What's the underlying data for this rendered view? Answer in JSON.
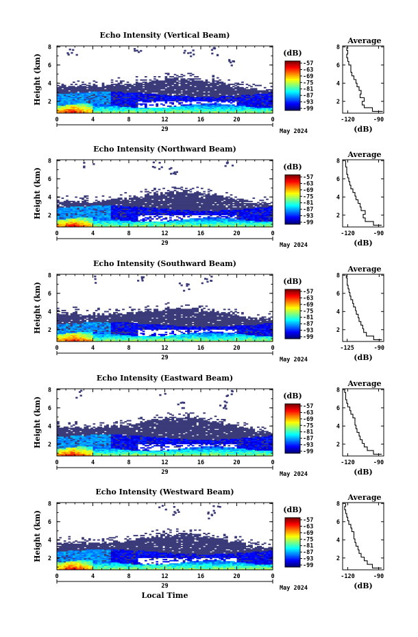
{
  "chart_data": [
    {
      "type": "heatmap",
      "title": "Echo Intensity (Vertical Beam)",
      "ylabel": "Height (km)",
      "y_ticks": [
        "2",
        "4",
        "6",
        "8"
      ],
      "x_ticks": [
        "0",
        "4",
        "8",
        "12",
        "16",
        "20",
        "0"
      ],
      "date_day": "29",
      "date_label": "May 2024",
      "xlim": [
        0,
        24
      ],
      "ylim": [
        0.7,
        8.1
      ],
      "colorbar": {
        "unit": "(dB)",
        "ticks": [
          "-57",
          "-63",
          "-69",
          "-75",
          "-81",
          "-87",
          "-93",
          "-99"
        ]
      },
      "layers": {
        "surface_top": 1.5,
        "middle_top": 3.0,
        "cloud_top_early": 3.8,
        "cloud_top_peak": 4.5,
        "cloud_top_late": 3.0,
        "sparse_noise": [
          [
            1.5,
            7.6
          ],
          [
            9.0,
            7.9
          ],
          [
            14.5,
            7.4
          ],
          [
            17.5,
            7.6
          ],
          [
            19.5,
            6.3
          ]
        ]
      },
      "average": {
        "title": "Average",
        "xlabel": "(dB)",
        "x_ticks": [
          "-120",
          "-90"
        ],
        "y_ticks": [
          "2",
          "4",
          "6",
          "8"
        ],
        "xlim": [
          -125,
          -85
        ],
        "ylim": [
          0.7,
          8.1
        ],
        "profile": [
          [
            -86,
            0.9
          ],
          [
            -96,
            1.3
          ],
          [
            -104,
            1.6
          ],
          [
            -106,
            2.0
          ],
          [
            -104,
            2.4
          ],
          [
            -108,
            2.8
          ],
          [
            -107,
            3.2
          ],
          [
            -109,
            3.6
          ],
          [
            -111,
            4.0
          ],
          [
            -112,
            4.4
          ],
          [
            -114,
            4.8
          ],
          [
            -116,
            5.2
          ],
          [
            -117,
            5.6
          ],
          [
            -117,
            6.0
          ],
          [
            -119,
            6.4
          ],
          [
            -120,
            6.8
          ],
          [
            -121,
            7.2
          ],
          [
            -120,
            7.6
          ],
          [
            -121,
            8.0
          ]
        ]
      }
    },
    {
      "type": "heatmap",
      "title": "Echo Intensity (Northward Beam)",
      "ylabel": "Height (km)",
      "y_ticks": [
        "2",
        "4",
        "6",
        "8"
      ],
      "x_ticks": [
        "0",
        "4",
        "8",
        "12",
        "16",
        "20",
        "0"
      ],
      "date_day": "29",
      "date_label": "May 2024",
      "xlim": [
        0,
        24
      ],
      "ylim": [
        0.7,
        8.1
      ],
      "colorbar": {
        "unit": "(dB)",
        "ticks": [
          "-57",
          "-63",
          "-69",
          "-75",
          "-81",
          "-87",
          "-93",
          "-99"
        ]
      },
      "layers": {
        "surface_top": 1.5,
        "middle_top": 3.0,
        "cloud_top_early": 3.5,
        "cloud_top_peak": 4.6,
        "cloud_top_late": 3.1,
        "sparse_noise": [
          [
            3.5,
            7.8
          ],
          [
            11.0,
            7.6
          ],
          [
            13.0,
            7.0
          ],
          [
            19.0,
            7.9
          ]
        ]
      },
      "average": {
        "title": "Average",
        "xlabel": "(dB)",
        "x_ticks": [
          "-120",
          "-90"
        ],
        "y_ticks": [
          "2",
          "4",
          "6",
          "8"
        ],
        "xlim": [
          -125,
          -85
        ],
        "ylim": [
          0.7,
          8.1
        ],
        "profile": [
          [
            -87,
            0.9
          ],
          [
            -95,
            1.3
          ],
          [
            -103,
            1.7
          ],
          [
            -105,
            2.1
          ],
          [
            -103,
            2.5
          ],
          [
            -107,
            2.9
          ],
          [
            -108,
            3.3
          ],
          [
            -110,
            3.7
          ],
          [
            -112,
            4.1
          ],
          [
            -113,
            4.5
          ],
          [
            -115,
            4.9
          ],
          [
            -117,
            5.3
          ],
          [
            -118,
            5.7
          ],
          [
            -119,
            6.1
          ],
          [
            -120,
            6.5
          ],
          [
            -121,
            6.9
          ],
          [
            -121,
            7.3
          ],
          [
            -122,
            7.7
          ],
          [
            -122,
            8.0
          ]
        ]
      }
    },
    {
      "type": "heatmap",
      "title": "Echo Intensity (Southward Beam)",
      "ylabel": "Height (km)",
      "y_ticks": [
        "2",
        "4",
        "6",
        "8"
      ],
      "x_ticks": [
        "0",
        "4",
        "8",
        "12",
        "16",
        "20",
        "0"
      ],
      "date_day": "29",
      "date_label": "May 2024",
      "xlim": [
        0,
        24
      ],
      "ylim": [
        0.7,
        8.1
      ],
      "colorbar": {
        "unit": "(dB)",
        "ticks": [
          "-57",
          "-63",
          "-69",
          "-75",
          "-81",
          "-87",
          "-93",
          "-99"
        ]
      },
      "layers": {
        "surface_top": 1.5,
        "middle_top": 2.8,
        "cloud_top_early": 3.8,
        "cloud_top_peak": 4.3,
        "cloud_top_late": 2.9,
        "sparse_noise": [
          [
            4.5,
            7.7
          ],
          [
            9.5,
            7.8
          ],
          [
            14.0,
            6.8
          ],
          [
            16.5,
            7.6
          ]
        ]
      },
      "average": {
        "title": "Average",
        "xlabel": "(dB)",
        "x_ticks": [
          "-125",
          "-90"
        ],
        "y_ticks": [
          "2",
          "4",
          "6",
          "8"
        ],
        "xlim": [
          -130,
          -85
        ],
        "ylim": [
          0.7,
          8.1
        ],
        "profile": [
          [
            -87,
            0.9
          ],
          [
            -96,
            1.3
          ],
          [
            -104,
            1.7
          ],
          [
            -107,
            2.1
          ],
          [
            -108,
            2.5
          ],
          [
            -110,
            2.9
          ],
          [
            -112,
            3.3
          ],
          [
            -113,
            3.7
          ],
          [
            -115,
            4.1
          ],
          [
            -116,
            4.5
          ],
          [
            -118,
            4.9
          ],
          [
            -119,
            5.3
          ],
          [
            -121,
            5.7
          ],
          [
            -122,
            6.1
          ],
          [
            -123,
            6.5
          ],
          [
            -124,
            6.9
          ],
          [
            -125,
            7.3
          ],
          [
            -125,
            7.7
          ],
          [
            -126,
            8.0
          ]
        ]
      }
    },
    {
      "type": "heatmap",
      "title": "Echo Intensity (Eastward Beam)",
      "ylabel": "Height (km)",
      "y_ticks": [
        "2",
        "4",
        "6",
        "8"
      ],
      "x_ticks": [
        "0",
        "4",
        "8",
        "12",
        "16",
        "20",
        "0"
      ],
      "date_day": "29",
      "date_label": "May 2024",
      "xlim": [
        0,
        24
      ],
      "ylim": [
        0.7,
        8.1
      ],
      "colorbar": {
        "unit": "(dB)",
        "ticks": [
          "-57",
          "-63",
          "-69",
          "-75",
          "-81",
          "-87",
          "-93",
          "-99"
        ]
      },
      "layers": {
        "surface_top": 1.5,
        "middle_top": 3.0,
        "cloud_top_early": 3.9,
        "cloud_top_peak": 5.0,
        "cloud_top_late": 3.1,
        "sparse_noise": [
          [
            2.5,
            7.6
          ],
          [
            11.5,
            7.9
          ],
          [
            13.5,
            6.5
          ],
          [
            18.5,
            6.4
          ],
          [
            19.0,
            7.8
          ]
        ]
      },
      "average": {
        "title": "Average",
        "xlabel": "(dB)",
        "x_ticks": [
          "-120",
          "-90"
        ],
        "y_ticks": [
          "2",
          "4",
          "6",
          "8"
        ],
        "xlim": [
          -125,
          -85
        ],
        "ylim": [
          0.7,
          8.1
        ],
        "profile": [
          [
            -87,
            0.9
          ],
          [
            -95,
            1.3
          ],
          [
            -101,
            1.7
          ],
          [
            -104,
            2.1
          ],
          [
            -106,
            2.5
          ],
          [
            -108,
            2.9
          ],
          [
            -109,
            3.3
          ],
          [
            -111,
            3.7
          ],
          [
            -112,
            4.1
          ],
          [
            -113,
            4.5
          ],
          [
            -113,
            4.9
          ],
          [
            -115,
            5.3
          ],
          [
            -117,
            5.7
          ],
          [
            -118,
            6.1
          ],
          [
            -120,
            6.5
          ],
          [
            -121,
            6.9
          ],
          [
            -122,
            7.3
          ],
          [
            -122,
            7.7
          ],
          [
            -123,
            8.0
          ]
        ]
      }
    },
    {
      "type": "heatmap",
      "title": "Echo Intensity (Westward Beam)",
      "ylabel": "Height (km)",
      "xlabel": "Local Time",
      "y_ticks": [
        "2",
        "4",
        "6",
        "8"
      ],
      "x_ticks": [
        "0",
        "4",
        "8",
        "12",
        "16",
        "20",
        "0"
      ],
      "date_day": "29",
      "date_label": "May 2024",
      "xlim": [
        0,
        24
      ],
      "ylim": [
        0.7,
        8.1
      ],
      "colorbar": {
        "unit": "(dB)",
        "ticks": [
          "-57",
          "-63",
          "-69",
          "-75",
          "-81",
          "-87",
          "-93",
          "-99"
        ]
      },
      "layers": {
        "surface_top": 1.5,
        "middle_top": 2.9,
        "cloud_top_early": 3.7,
        "cloud_top_peak": 4.6,
        "cloud_top_late": 3.0,
        "sparse_noise": [
          [
            11.5,
            7.8
          ],
          [
            13.0,
            7.3
          ],
          [
            17.0,
            6.9
          ],
          [
            17.5,
            7.9
          ]
        ]
      },
      "average": {
        "title": "Average",
        "xlabel": "(dB)",
        "x_ticks": [
          "-120",
          "-90"
        ],
        "y_ticks": [
          "2",
          "4",
          "6",
          "8"
        ],
        "xlim": [
          -125,
          -85
        ],
        "ylim": [
          0.7,
          8.1
        ],
        "profile": [
          [
            -87,
            0.9
          ],
          [
            -96,
            1.3
          ],
          [
            -101,
            1.7
          ],
          [
            -104,
            2.1
          ],
          [
            -107,
            2.5
          ],
          [
            -109,
            2.9
          ],
          [
            -110,
            3.3
          ],
          [
            -112,
            3.7
          ],
          [
            -113,
            4.1
          ],
          [
            -114,
            4.5
          ],
          [
            -114,
            4.9
          ],
          [
            -116,
            5.3
          ],
          [
            -117,
            5.7
          ],
          [
            -119,
            6.1
          ],
          [
            -120,
            6.5
          ],
          [
            -121,
            6.9
          ],
          [
            -122,
            7.3
          ],
          [
            -123,
            7.7
          ],
          [
            -122,
            8.0
          ]
        ]
      }
    }
  ]
}
